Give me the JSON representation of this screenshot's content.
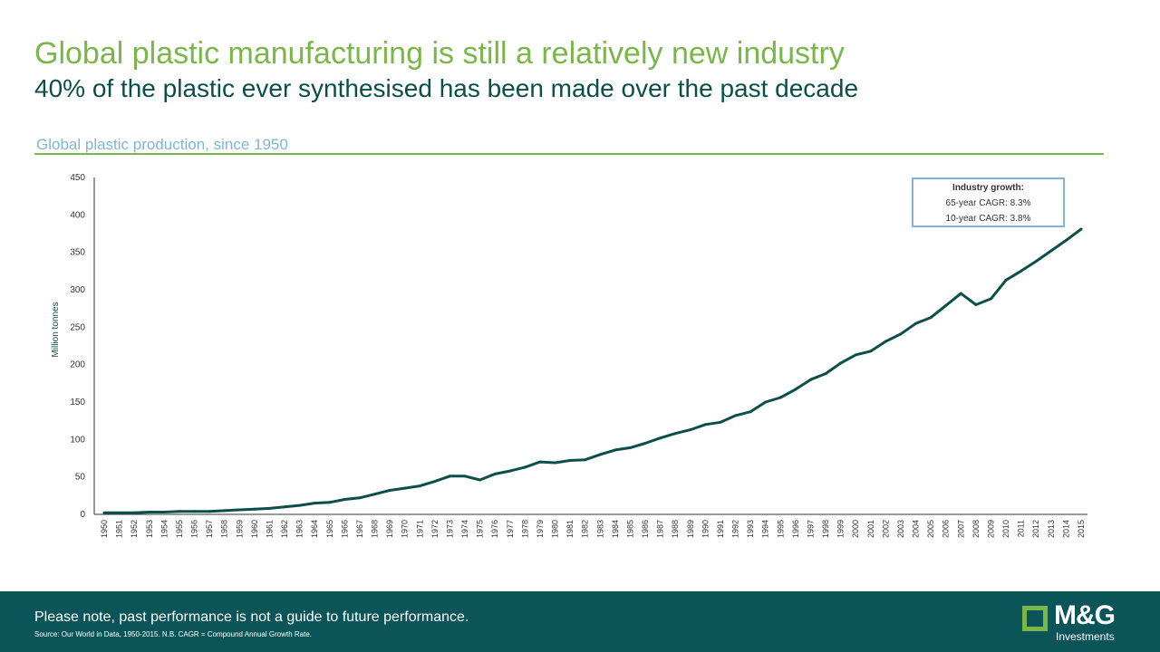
{
  "header": {
    "title": "Global plastic manufacturing is still a relatively new industry",
    "subtitle": "40% of the plastic ever synthesised has been made over the past decade",
    "chart_label": "Global plastic production, since 1950"
  },
  "legend": {
    "heading": "Industry growth:",
    "line1": "65-year CAGR:  8.3%",
    "line2": "10-year CAGR:  3.8%"
  },
  "footer": {
    "note": "Please note, past performance is not a guide to future performance.",
    "source": "Source: Our World in Data, 1950-2015. N.B. CAGR = Compound Annual Growth Rate.",
    "logo_text": "M&G",
    "logo_sub": "Investments"
  },
  "colors": {
    "title": "#7ab648",
    "subtitle": "#0b4f4a",
    "line": "#0b4f4a",
    "accent_blue": "#7fb6d8",
    "footer_bg": "#0b5559"
  },
  "chart_data": {
    "type": "line",
    "title": "Global plastic production, since 1950",
    "ylabel": "Million tonnes",
    "xlabel": "",
    "ylim": [
      0,
      450
    ],
    "yticks": [
      0,
      50,
      100,
      150,
      200,
      250,
      300,
      350,
      400,
      450
    ],
    "grid": false,
    "x": [
      "1950",
      "1951",
      "1952",
      "1953",
      "1954",
      "1955",
      "1956",
      "1957",
      "1958",
      "1959",
      "1960",
      "1961",
      "1962",
      "1963",
      "1964",
      "1965",
      "1966",
      "1967",
      "1968",
      "1969",
      "1970",
      "1971",
      "1972",
      "1973",
      "1974",
      "1975",
      "1976",
      "1977",
      "1978",
      "1979",
      "1980",
      "1981",
      "1982",
      "1983",
      "1984",
      "1985",
      "1986",
      "1987",
      "1988",
      "1989",
      "1990",
      "1991",
      "1992",
      "1993",
      "1994",
      "1995",
      "1996",
      "1997",
      "1998",
      "1999",
      "2000",
      "2001",
      "2002",
      "2003",
      "2004",
      "2005",
      "2006",
      "2007",
      "2008",
      "2009",
      "2010",
      "2011",
      "2012",
      "2013",
      "2014",
      "2015"
    ],
    "series": [
      {
        "values": [
          2,
          2,
          2,
          3,
          3,
          4,
          4,
          4,
          5,
          6,
          7,
          8,
          10,
          12,
          15,
          16,
          20,
          22,
          27,
          32,
          35,
          38,
          44,
          51,
          51,
          46,
          54,
          58,
          63,
          70,
          69,
          72,
          73,
          80,
          86,
          89,
          95,
          102,
          108,
          113,
          120,
          123,
          132,
          137,
          150,
          156,
          167,
          180,
          188,
          202,
          213,
          218,
          231,
          241,
          255,
          263,
          279,
          295,
          280,
          288,
          313,
          325,
          338,
          352,
          366,
          381
        ]
      }
    ]
  }
}
